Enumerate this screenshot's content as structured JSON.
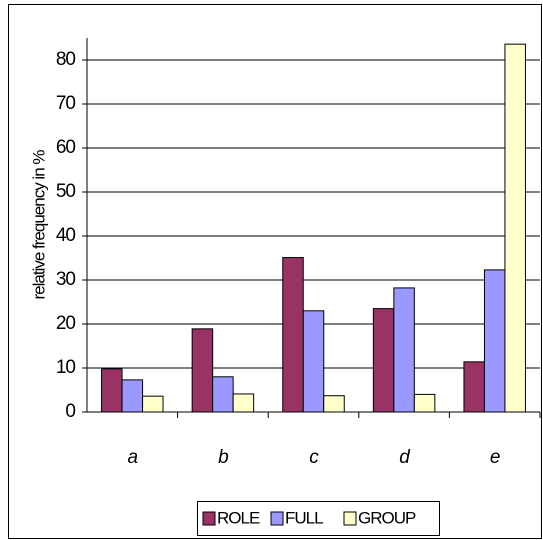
{
  "chart_data": {
    "type": "bar",
    "y_label": "relative frequency in %",
    "categories": [
      "a",
      "b",
      "c",
      "d",
      "e"
    ],
    "series": [
      {
        "name": "ROLE",
        "color": "#993366",
        "values": [
          9.8,
          18.9,
          35.1,
          23.5,
          11.4
        ]
      },
      {
        "name": "FULL",
        "color": "#9999ff",
        "values": [
          7.3,
          8,
          23,
          28.2,
          32.3
        ]
      },
      {
        "name": "GROUP",
        "color": "#ffffcc",
        "values": [
          3.6,
          4.1,
          3.7,
          4,
          83.6
        ]
      }
    ],
    "ylim": [
      0,
      85
    ],
    "yticks": [
      0,
      10,
      20,
      30,
      40,
      50,
      60,
      70,
      80
    ],
    "grid": true,
    "legend": "bottom"
  }
}
